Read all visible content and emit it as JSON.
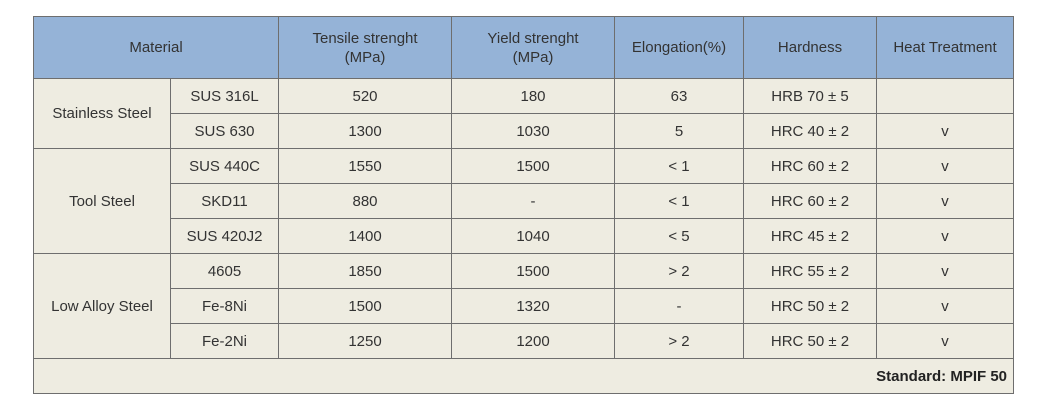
{
  "header": [
    [
      "Material"
    ],
    [
      "Tensile strenght",
      "(MPa)"
    ],
    [
      "Yield strenght",
      "(MPa)"
    ],
    [
      "Elongation(%)"
    ],
    [
      "Hardness"
    ],
    [
      "Heat Treatment"
    ]
  ],
  "groups": [
    {
      "name": "Stainless Steel",
      "rows": [
        [
          "SUS 316L",
          520,
          180,
          63,
          "HRB 70 ± 5",
          null
        ],
        [
          "SUS 630",
          1300,
          1030,
          5,
          "HRC 40 ± 2",
          "v"
        ]
      ]
    },
    {
      "name": "Tool Steel",
      "rows": [
        [
          "SUS 440C",
          1550,
          1500,
          "< 1",
          "HRC 60 ± 2",
          "v"
        ],
        [
          "SKD11",
          880,
          "-",
          "< 1",
          "HRC 60 ± 2",
          "v"
        ],
        [
          "SUS 420J2",
          1400,
          1040,
          "< 5",
          "HRC 45 ± 2",
          "v"
        ]
      ]
    },
    {
      "name": "Low Alloy Steel",
      "rows": [
        [
          "4605",
          1850,
          1500,
          "> 2",
          "HRC 55 ± 2",
          "v"
        ],
        [
          "Fe-8Ni",
          1500,
          1320,
          "-",
          "HRC 50 ± 2",
          "v"
        ],
        [
          "Fe-2Ni",
          1250,
          1200,
          "> 2",
          "HRC 50 ± 2",
          "v"
        ]
      ]
    }
  ],
  "footer": "Standard: MPIF 50"
}
